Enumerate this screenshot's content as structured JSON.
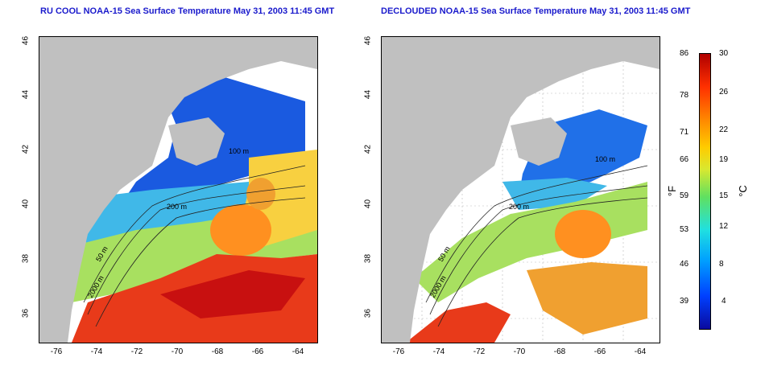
{
  "left_panel": {
    "title": "RU COOL NOAA-15 Sea Surface Temperature May 31, 2003 11:45 GMT"
  },
  "right_panel": {
    "title": "DECLOUDED NOAA-15 Sea Surface Temperature May 31, 2003 11:45 GMT"
  },
  "axes": {
    "y_ticks": [
      "46",
      "44",
      "42",
      "40",
      "38",
      "36"
    ],
    "x_ticks": [
      "-76",
      "-74",
      "-72",
      "-70",
      "-68",
      "-66",
      "-64"
    ]
  },
  "contour_labels": {
    "c200": "200 m",
    "c100": "100 m",
    "c2000": "2000 m",
    "c50": "50 m"
  },
  "colorbar": {
    "fahrenheit": [
      "86",
      "78",
      "71",
      "66",
      "59",
      "53",
      "46",
      "39"
    ],
    "celsius": [
      "30",
      "26",
      "22",
      "19",
      "15",
      "12",
      "8",
      "4"
    ],
    "unit_f": "°F",
    "unit_c": "°C"
  },
  "colors": {
    "land": "#c0c0c0",
    "title": "#1a1acc"
  }
}
